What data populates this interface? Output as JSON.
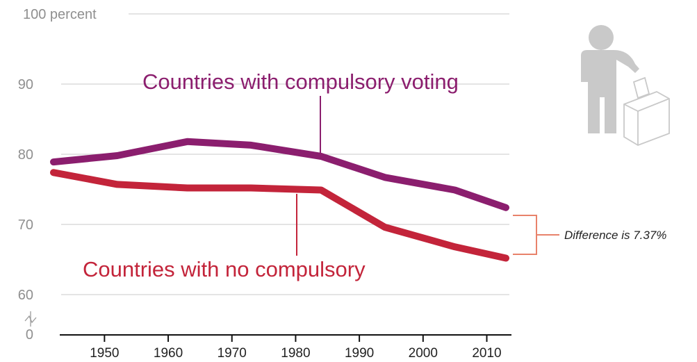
{
  "chart_data": {
    "type": "line",
    "title": "",
    "xlabel": "",
    "ylabel": "",
    "x": [
      1942,
      1952,
      1963,
      1973,
      1984,
      1994,
      2005,
      2013
    ],
    "x_ticks": [
      1950,
      1960,
      1970,
      1980,
      1990,
      2000,
      2010
    ],
    "xlim": [
      1942,
      2013
    ],
    "ylim": [
      60,
      100
    ],
    "axis_break": true,
    "y_ticks": [
      {
        "value": 100,
        "label": "100 percent"
      },
      {
        "value": 90,
        "label": "90"
      },
      {
        "value": 80,
        "label": "80"
      },
      {
        "value": 70,
        "label": "70"
      },
      {
        "value": 60,
        "label": "60"
      }
    ],
    "y_zero_label": "0",
    "grid": true,
    "series": [
      {
        "name": "Countries with compulsory voting",
        "color": "#8b1e6e",
        "values": [
          78.9,
          79.8,
          81.8,
          81.3,
          79.7,
          76.7,
          74.9,
          72.4
        ]
      },
      {
        "name": "Countries with no compulsory",
        "color": "#c3243a",
        "values": [
          77.4,
          75.7,
          75.2,
          75.2,
          74.9,
          69.6,
          66.8,
          65.2
        ]
      }
    ],
    "annotation": {
      "text": "Difference is 7.37%",
      "color": "#e8826a"
    },
    "icon": {
      "name": "person-voting-ballot-box-icon",
      "color": "#c9c9c9"
    }
  }
}
